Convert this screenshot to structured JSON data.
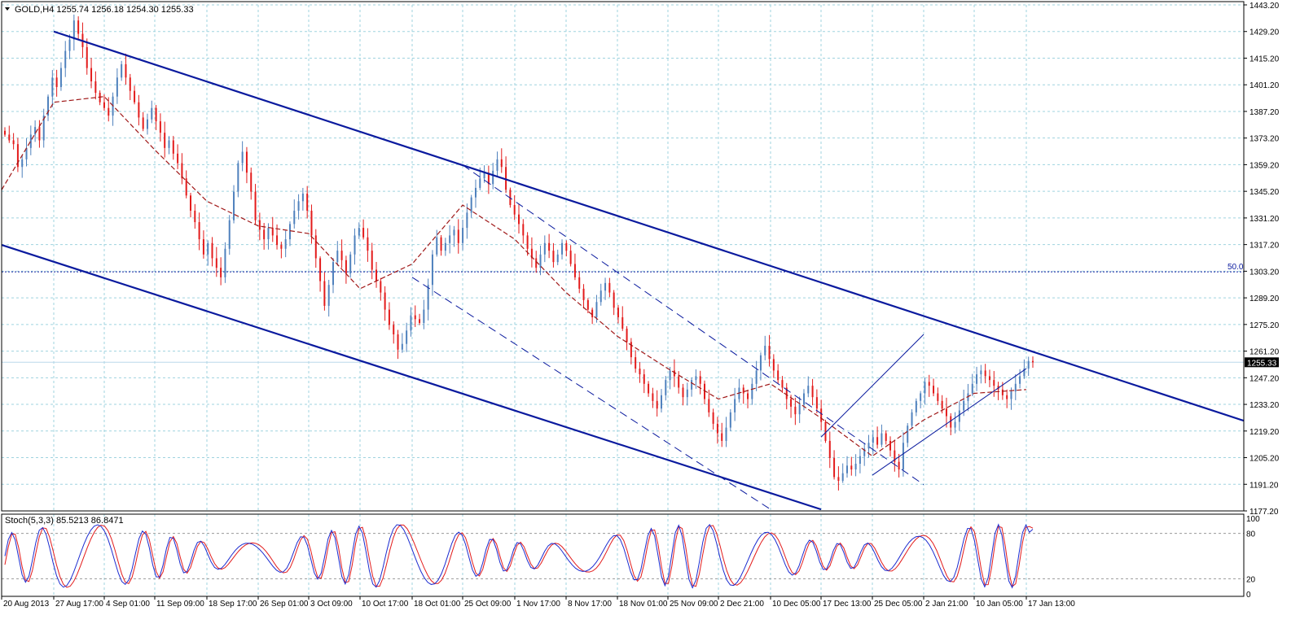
{
  "chart_data": [
    {
      "type": "candlestick",
      "symbol": "GOLD",
      "timeframe": "H4",
      "header": "GOLD,H4  1255.74 1256.18 1254.30 1255.33",
      "ohlc": {
        "open": 1255.74,
        "high": 1256.18,
        "low": 1254.3,
        "close": 1255.33
      },
      "current_price_label": "1255.33",
      "current_price": 1255.33,
      "ylim": [
        1177.2,
        1443.2
      ],
      "y_ticks": [
        "1443.20",
        "1429.20",
        "1415.20",
        "1401.20",
        "1387.20",
        "1373.20",
        "1359.20",
        "1345.20",
        "1331.20",
        "1317.20",
        "1303.20",
        "1289.20",
        "1275.20",
        "1261.20",
        "1247.20",
        "1233.20",
        "1219.20",
        "1205.20",
        "1191.20",
        "1177.20"
      ],
      "x_ticks": [
        "20 Aug 2013",
        "27 Aug 17:00",
        "4 Sep 01:00",
        "11 Sep 09:00",
        "18 Sep 17:00",
        "26 Sep 01:00",
        "3 Oct 09:00",
        "10 Oct 17:00",
        "18 Oct 01:00",
        "25 Oct 09:00",
        "1 Nov 17:00",
        "8 Nov 17:00",
        "18 Nov 01:00",
        "25 Nov 09:00",
        "2 Dec 21:00",
        "10 Dec 05:00",
        "17 Dec 13:00",
        "25 Dec 05:00",
        "2 Jan 21:00",
        "10 Jan 05:00",
        "17 Jan 13:00"
      ],
      "grid": true,
      "colors": {
        "bull": "#4f81bd",
        "bear": "#e31b1b",
        "moving_average": "#a01818",
        "channel": "#0a1a9e",
        "grid": "#9fd3df"
      },
      "fib_level": {
        "label": "50.0",
        "value": 1302.9
      },
      "candles_close": [
        1375,
        1372,
        1370,
        1358,
        1362,
        1368,
        1375,
        1379,
        1372,
        1385,
        1395,
        1405,
        1400,
        1410,
        1419,
        1425,
        1435,
        1428,
        1421,
        1410,
        1403,
        1397,
        1392,
        1389,
        1385,
        1395,
        1405,
        1412,
        1405,
        1398,
        1392,
        1384,
        1378,
        1383,
        1389,
        1382,
        1376,
        1368,
        1372,
        1365,
        1360,
        1352,
        1343,
        1335,
        1329,
        1320,
        1312,
        1318,
        1310,
        1305,
        1300,
        1315,
        1330,
        1345,
        1360,
        1366,
        1355,
        1345,
        1330,
        1325,
        1320,
        1326,
        1322,
        1317,
        1315,
        1320,
        1328,
        1335,
        1340,
        1344,
        1335,
        1322,
        1310,
        1298,
        1285,
        1296,
        1308,
        1314,
        1309,
        1302,
        1312,
        1322,
        1326,
        1321,
        1314,
        1304,
        1298,
        1292,
        1283,
        1275,
        1270,
        1262,
        1265,
        1272,
        1280,
        1278,
        1276,
        1283,
        1296,
        1312,
        1321,
        1314,
        1318,
        1322,
        1325,
        1318,
        1326,
        1334,
        1342,
        1347,
        1352,
        1355,
        1349,
        1356,
        1362,
        1358,
        1346,
        1338,
        1333,
        1328,
        1322,
        1315,
        1310,
        1305,
        1312,
        1318,
        1314,
        1308,
        1312,
        1318,
        1314,
        1307,
        1300,
        1294,
        1288,
        1283,
        1279,
        1287,
        1293,
        1297,
        1292,
        1284,
        1279,
        1273,
        1266,
        1258,
        1252,
        1249,
        1244,
        1239,
        1235,
        1231,
        1238,
        1246,
        1251,
        1248,
        1242,
        1237,
        1241,
        1246,
        1248,
        1244,
        1236,
        1229,
        1223,
        1218,
        1214,
        1221,
        1229,
        1236,
        1242,
        1239,
        1236,
        1244,
        1251,
        1259,
        1264,
        1257,
        1251,
        1246,
        1242,
        1236,
        1232,
        1228,
        1233,
        1239,
        1243,
        1237,
        1231,
        1224,
        1214,
        1205,
        1195,
        1193,
        1197,
        1201,
        1199,
        1202,
        1206,
        1210,
        1213,
        1216,
        1212,
        1218,
        1214,
        1209,
        1203,
        1199,
        1213,
        1222,
        1229,
        1235,
        1239,
        1245,
        1243,
        1239,
        1235,
        1231,
        1227,
        1221,
        1224,
        1230,
        1235,
        1239,
        1244,
        1249,
        1251,
        1248,
        1246,
        1243,
        1241,
        1238,
        1236,
        1240,
        1244,
        1248,
        1252,
        1256,
        1255.33
      ],
      "moving_average": [
        {
          "x": "20 Aug 2013",
          "y": 1346
        },
        {
          "x": "27 Aug 17:00",
          "y": 1392
        },
        {
          "x": "4 Sep 01:00",
          "y": 1395
        },
        {
          "x": "11 Sep 09:00",
          "y": 1367
        },
        {
          "x": "18 Sep 17:00",
          "y": 1340
        },
        {
          "x": "26 Sep 01:00",
          "y": 1327
        },
        {
          "x": "3 Oct 09:00",
          "y": 1323
        },
        {
          "x": "10 Oct 17:00",
          "y": 1294
        },
        {
          "x": "18 Oct 01:00",
          "y": 1307
        },
        {
          "x": "25 Oct 09:00",
          "y": 1338
        },
        {
          "x": "1 Nov 17:00",
          "y": 1320
        },
        {
          "x": "8 Nov 17:00",
          "y": 1292
        },
        {
          "x": "18 Nov 01:00",
          "y": 1269
        },
        {
          "x": "25 Nov 09:00",
          "y": 1252
        },
        {
          "x": "2 Dec 21:00",
          "y": 1236
        },
        {
          "x": "10 Dec 05:00",
          "y": 1244
        },
        {
          "x": "17 Dec 13:00",
          "y": 1226
        },
        {
          "x": "25 Dec 05:00",
          "y": 1206
        },
        {
          "x": "2 Jan 21:00",
          "y": 1225
        },
        {
          "x": "10 Jan 05:00",
          "y": 1239
        },
        {
          "x": "17 Jan 13:00",
          "y": 1241
        }
      ],
      "trend_lines": [
        {
          "name": "main channel upper",
          "style": "solid-thick",
          "points": [
            {
              "x": "27 Aug 17:00",
              "y": 1429.2
            },
            {
              "x": "17 Jan 13:00",
              "y": 1262
            }
          ]
        },
        {
          "name": "main channel lower",
          "style": "solid-thick",
          "points": [
            {
              "x": "20 Aug 2013",
              "y": 1317
            },
            {
              "x": "17 Dec 13:00",
              "y": 1178
            }
          ]
        },
        {
          "name": "dashed channel upper",
          "style": "dashed",
          "points": [
            {
              "x": "25 Oct 09:00",
              "y": 1359
            },
            {
              "x": "2 Jan 21:00",
              "y": 1191
            }
          ]
        },
        {
          "name": "dashed channel lower",
          "style": "dashed",
          "points": [
            {
              "x": "18 Oct 01:00",
              "y": 1300
            },
            {
              "x": "10 Dec 05:00",
              "y": 1178
            }
          ]
        },
        {
          "name": "rising channel upper",
          "style": "solid-thin",
          "points": [
            {
              "x": "17 Dec 13:00",
              "y": 1216
            },
            {
              "x": "2 Jan 21:00",
              "y": 1270
            }
          ]
        },
        {
          "name": "rising channel lower",
          "style": "solid-thin",
          "points": [
            {
              "x": "25 Dec 05:00",
              "y": 1196
            },
            {
              "x": "17 Jan 13:00",
              "y": 1252
            }
          ]
        }
      ]
    },
    {
      "type": "line",
      "indicator": "Stochastic",
      "header": "Stoch(5,3,3) 85.5213 86.8471",
      "main": 85.5213,
      "signal": 86.8471,
      "ylim": [
        0,
        100
      ],
      "y_ticks": [
        "100",
        "80",
        "20",
        "0"
      ],
      "levels": [
        80,
        20
      ],
      "colors": {
        "main": "#1b2bd0",
        "signal": "#e31b1b"
      }
    }
  ]
}
